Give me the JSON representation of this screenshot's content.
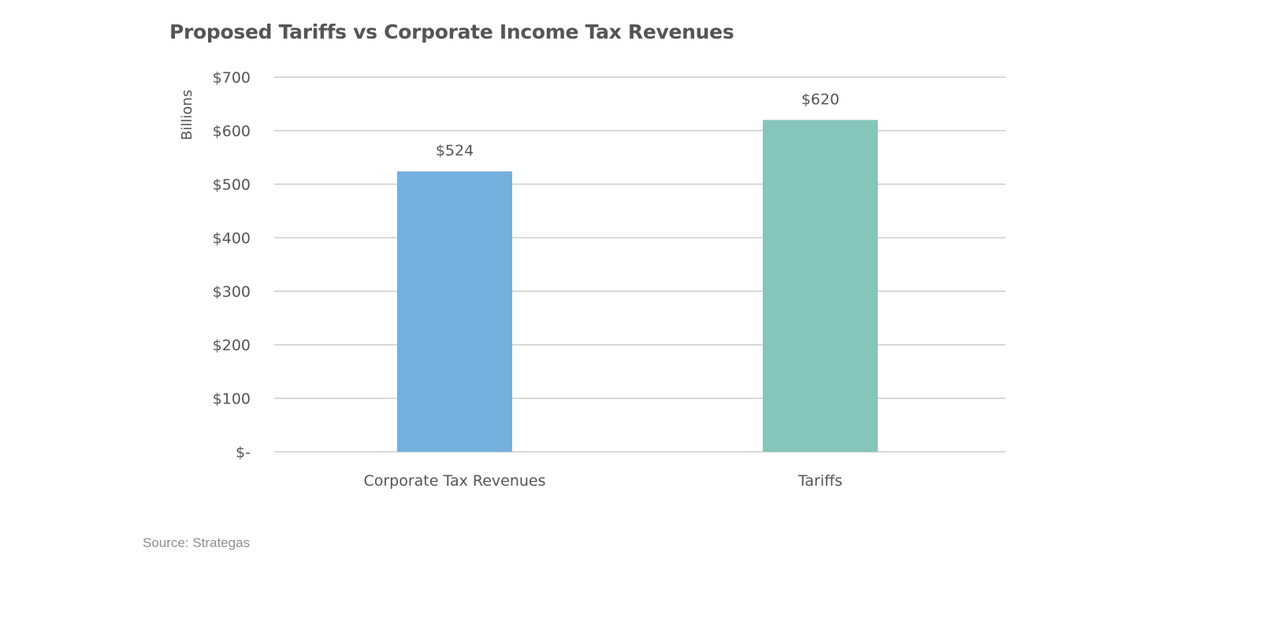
{
  "chart_data": {
    "type": "bar",
    "title": "Proposed Tariffs vs Corporate Income Tax Revenues",
    "ylabel": "Billions",
    "xlabel": "",
    "categories": [
      "Corporate Tax Revenues",
      "Tariffs"
    ],
    "values": [
      524,
      620
    ],
    "data_labels": [
      "$524",
      "$620"
    ],
    "colors": [
      "#74b0de",
      "#85c5bb"
    ],
    "ylim": [
      0,
      700
    ],
    "yticks": [
      0,
      100,
      200,
      300,
      400,
      500,
      600,
      700
    ],
    "ytick_labels": [
      "$-",
      "$100",
      "$200",
      "$300",
      "$400",
      "$500",
      "$600",
      "$700"
    ],
    "grid": true,
    "grid_color": "#d9d9d9",
    "source": "Source: Strategas"
  }
}
